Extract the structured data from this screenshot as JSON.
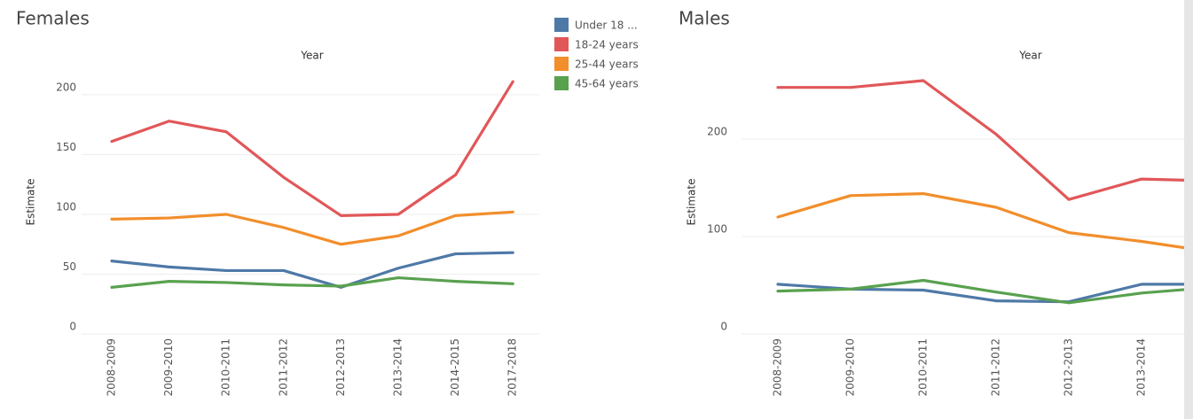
{
  "chart_data": [
    {
      "type": "line",
      "title": "Females",
      "x_label": "Year",
      "y_label": "Estimate",
      "categories": [
        "2008-2009",
        "2009-2010",
        "2010-2011",
        "2011-2012",
        "2012-2013",
        "2013-2014",
        "2014-2015",
        "2017-2018"
      ],
      "series": [
        {
          "name": "Under 18 ...",
          "color": "#4e79a7",
          "values": [
            61,
            56,
            53,
            53,
            39,
            55,
            67,
            68
          ]
        },
        {
          "name": "18-24 years",
          "color": "#e15759",
          "values": [
            161,
            178,
            169,
            131,
            99,
            100,
            133,
            211
          ]
        },
        {
          "name": "25-44 years",
          "color": "#f28e2b",
          "values": [
            96,
            97,
            100,
            89,
            75,
            82,
            99,
            102
          ]
        },
        {
          "name": "45-64 years",
          "color": "#59a14f",
          "values": [
            39,
            44,
            43,
            41,
            40,
            47,
            44,
            42
          ]
        }
      ],
      "ylim": [
        0,
        220
      ],
      "yticks": [
        0,
        50,
        100,
        150,
        200
      ],
      "grid": true
    },
    {
      "type": "line",
      "title": "Males",
      "x_label": "Year",
      "y_label": "Estimate",
      "categories": [
        "2008-2009",
        "2009-2010",
        "2010-2011",
        "2011-2012",
        "2012-2013",
        "2013-2014",
        null
      ],
      "series": [
        {
          "color": "#4e79a7",
          "values": [
            51,
            46,
            45,
            34,
            33,
            51,
            51
          ]
        },
        {
          "color": "#e15759",
          "values": [
            253,
            253,
            260,
            205,
            138,
            159,
            157
          ]
        },
        {
          "color": "#f28e2b",
          "values": [
            120,
            142,
            144,
            130,
            104,
            95,
            84
          ]
        },
        {
          "color": "#59a14f",
          "values": [
            44,
            46,
            55,
            43,
            32,
            42,
            48
          ]
        }
      ],
      "ylim": [
        0,
        270
      ],
      "yticks": [
        0,
        100,
        200
      ],
      "grid": true
    }
  ]
}
